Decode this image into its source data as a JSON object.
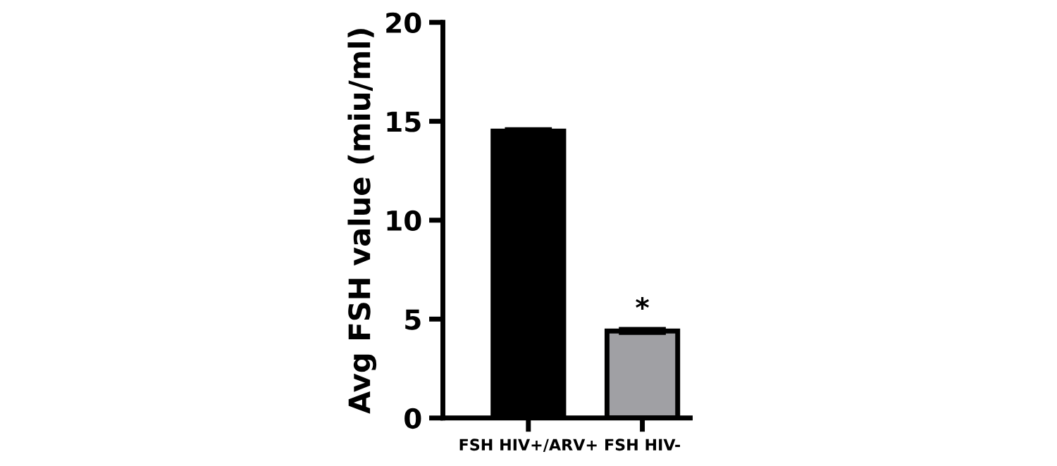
{
  "chart_data": {
    "type": "bar",
    "ylabel": "Avg FSH value (miu/ml)",
    "categories": [
      "FSH HIV+/ARV+",
      "FSH HIV-"
    ],
    "values": [
      14.5,
      4.4
    ],
    "colors": [
      "#000000",
      "#a0a0a4"
    ],
    "errors": [
      0.1,
      0.1
    ],
    "ylim": [
      0,
      20
    ],
    "yticks": [
      0,
      5,
      10,
      15,
      20
    ],
    "grid": false,
    "legend": false,
    "annotations": [
      {
        "text": "*",
        "x": "FSH HIV-",
        "y": 4.8
      }
    ]
  }
}
